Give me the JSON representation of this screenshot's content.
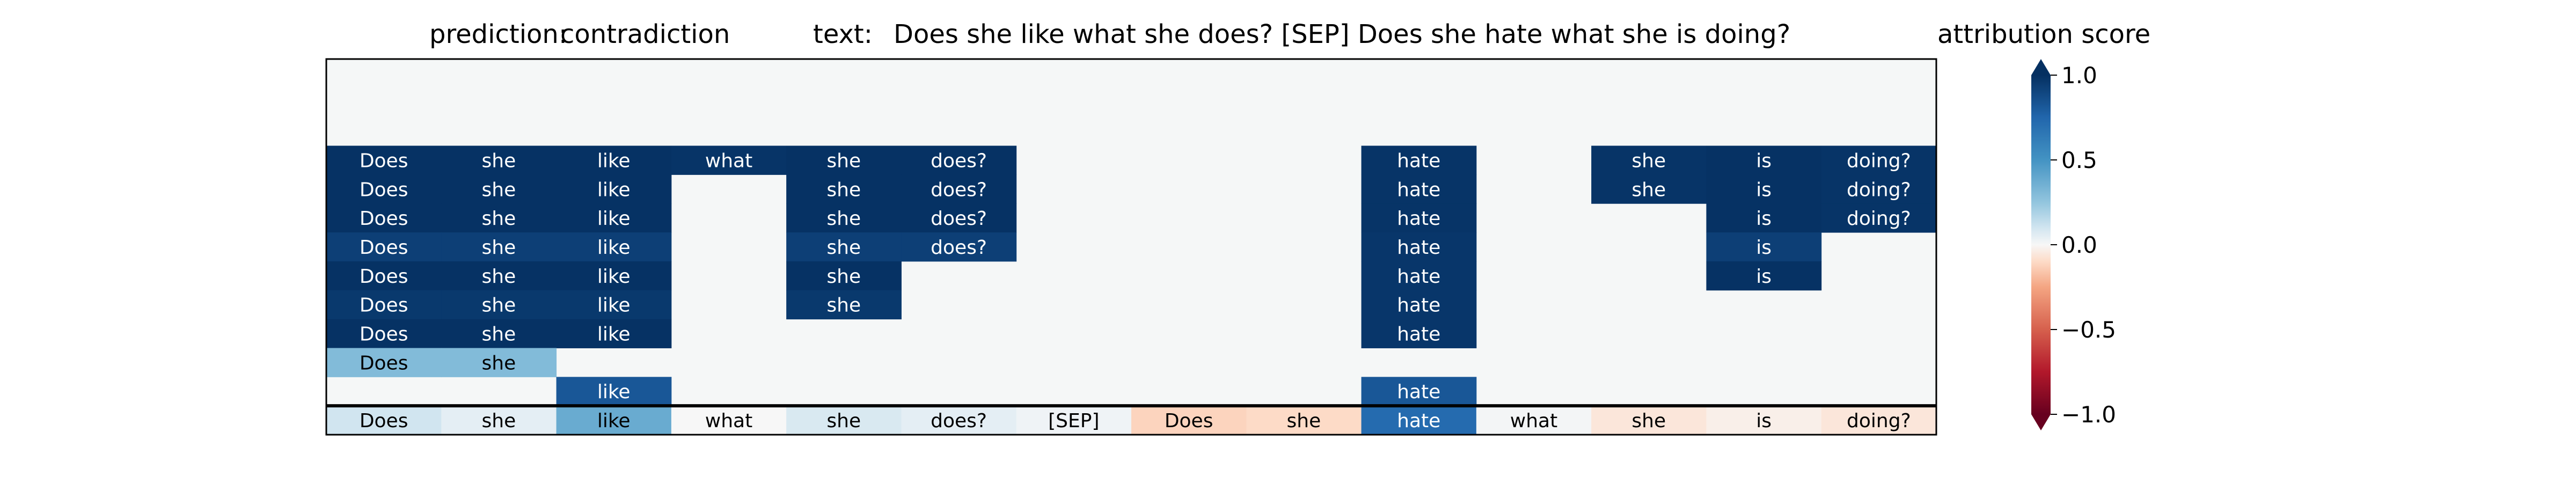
{
  "chart_data": {
    "type": "heatmap",
    "prediction_label": "prediction:",
    "prediction_value": "contradiction",
    "text_label": "text:",
    "text_value": "Does she like what she does? [SEP] Does she hate what she is doing?",
    "colorbar_title": "attribution score",
    "colorbar_ticks": [
      "1.0",
      "0.5",
      "0.0",
      "−0.5",
      "−1.0"
    ],
    "colorbar_tick_values": [
      1.0,
      0.5,
      0.0,
      -0.5,
      -1.0
    ],
    "colormap": "RdBu",
    "vmin": -1.0,
    "vmax": 1.0,
    "background_color": "#f5f7f7",
    "tokens": [
      "Does",
      "she",
      "like",
      "what",
      "she",
      "does?",
      "[SEP]",
      "Does",
      "she",
      "hate",
      "what",
      "she",
      "is",
      "doing?"
    ],
    "rows": [
      [
        null,
        null,
        null,
        null,
        null,
        null,
        null,
        null,
        null,
        null,
        null,
        null,
        null,
        null
      ],
      [
        null,
        null,
        null,
        null,
        null,
        null,
        null,
        null,
        null,
        null,
        null,
        null,
        null,
        null
      ],
      [
        null,
        null,
        null,
        null,
        null,
        null,
        null,
        null,
        null,
        null,
        null,
        null,
        null,
        null
      ],
      [
        0.99,
        0.99,
        0.99,
        0.98,
        0.99,
        0.99,
        null,
        null,
        null,
        0.98,
        null,
        0.98,
        0.99,
        0.98
      ],
      [
        0.99,
        0.99,
        0.99,
        null,
        0.99,
        0.99,
        null,
        null,
        null,
        0.98,
        null,
        0.98,
        0.99,
        0.98
      ],
      [
        0.99,
        0.99,
        0.99,
        null,
        0.99,
        0.99,
        null,
        null,
        null,
        0.98,
        null,
        null,
        0.99,
        0.98
      ],
      [
        0.93,
        0.93,
        0.93,
        null,
        0.93,
        0.93,
        null,
        null,
        null,
        0.97,
        null,
        null,
        0.93,
        null
      ],
      [
        0.99,
        0.99,
        0.99,
        null,
        0.99,
        null,
        null,
        null,
        null,
        0.97,
        null,
        null,
        0.99,
        null
      ],
      [
        0.96,
        0.96,
        0.96,
        null,
        0.96,
        null,
        null,
        null,
        null,
        0.97,
        null,
        null,
        null,
        null
      ],
      [
        0.99,
        0.99,
        0.99,
        null,
        null,
        null,
        null,
        null,
        null,
        0.97,
        null,
        null,
        null,
        null
      ],
      [
        0.3,
        0.3,
        null,
        null,
        null,
        null,
        null,
        null,
        null,
        null,
        null,
        null,
        null,
        null
      ],
      [
        null,
        null,
        0.82,
        null,
        null,
        null,
        null,
        null,
        null,
        0.82,
        null,
        null,
        null,
        null
      ],
      [
        0.1,
        0.05,
        0.38,
        0.0,
        0.08,
        0.05,
        0.02,
        -0.12,
        -0.1,
        0.72,
        0.01,
        -0.06,
        -0.03,
        -0.06
      ]
    ]
  }
}
